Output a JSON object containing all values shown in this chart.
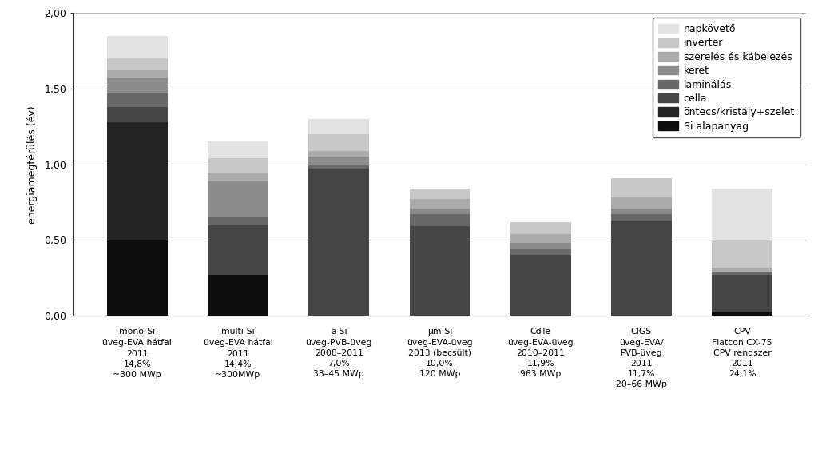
{
  "categories": [
    "mono-Si\nüveg-EVA hátfal\n2011\n14,8%\n~300 MWp",
    "multi-Si\nüveg-EVA hátfal\n2011\n14,4%\n~300MWp",
    "a-Si\nüveg-PVB-üveg\n2008–2011\n7,0%\n33–45 MWp",
    "μm-Si\nüveg-EVA-üveg\n2013 (becsült)\n10,0%\n120 MWp",
    "CdTe\nüveg-EVA-üveg\n2010–2011\n11,9%\n963 MWp",
    "CIGS\nüveg-EVA/\nPVB-üveg\n2011\n11,7%\n20–66 MWp",
    "CPV\nFlatcon CX-75\nCPV rendszer\n2011\n24,1%"
  ],
  "layers": [
    {
      "label": "Si alapanyag",
      "color": "#0d0d0d",
      "values": [
        0.5,
        0.27,
        0.0,
        0.0,
        0.0,
        0.0,
        0.03
      ]
    },
    {
      "label": "öntecs/kristály+szelet",
      "color": "#242424",
      "values": [
        0.78,
        0.0,
        0.0,
        0.0,
        0.0,
        0.0,
        0.0
      ]
    },
    {
      "label": "cella",
      "color": "#454545",
      "values": [
        0.1,
        0.33,
        0.97,
        0.59,
        0.4,
        0.63,
        0.24
      ]
    },
    {
      "label": "laminálás",
      "color": "#686868",
      "values": [
        0.09,
        0.05,
        0.03,
        0.08,
        0.04,
        0.04,
        0.02
      ]
    },
    {
      "label": "keret",
      "color": "#8c8c8c",
      "values": [
        0.1,
        0.24,
        0.05,
        0.04,
        0.04,
        0.04,
        0.0
      ]
    },
    {
      "label": "szerelés és kábelezés",
      "color": "#ababab",
      "values": [
        0.05,
        0.05,
        0.04,
        0.06,
        0.06,
        0.07,
        0.03
      ]
    },
    {
      "label": "inverter",
      "color": "#c8c8c8",
      "values": [
        0.08,
        0.1,
        0.11,
        0.07,
        0.08,
        0.13,
        0.18
      ]
    },
    {
      "label": "napkövető",
      "color": "#e2e2e2",
      "values": [
        0.15,
        0.11,
        0.1,
        0.0,
        0.0,
        0.0,
        0.34
      ]
    }
  ],
  "ylabel": "energiamegtérülés (év)",
  "ylim": [
    0,
    2.0
  ],
  "yticks": [
    0.0,
    0.5,
    1.0,
    1.5,
    2.0
  ],
  "ytick_labels": [
    "0,00",
    "0,50",
    "1,00",
    "1,50",
    "2,00"
  ],
  "background_color": "#ffffff",
  "bar_width": 0.6,
  "font_size": 9
}
